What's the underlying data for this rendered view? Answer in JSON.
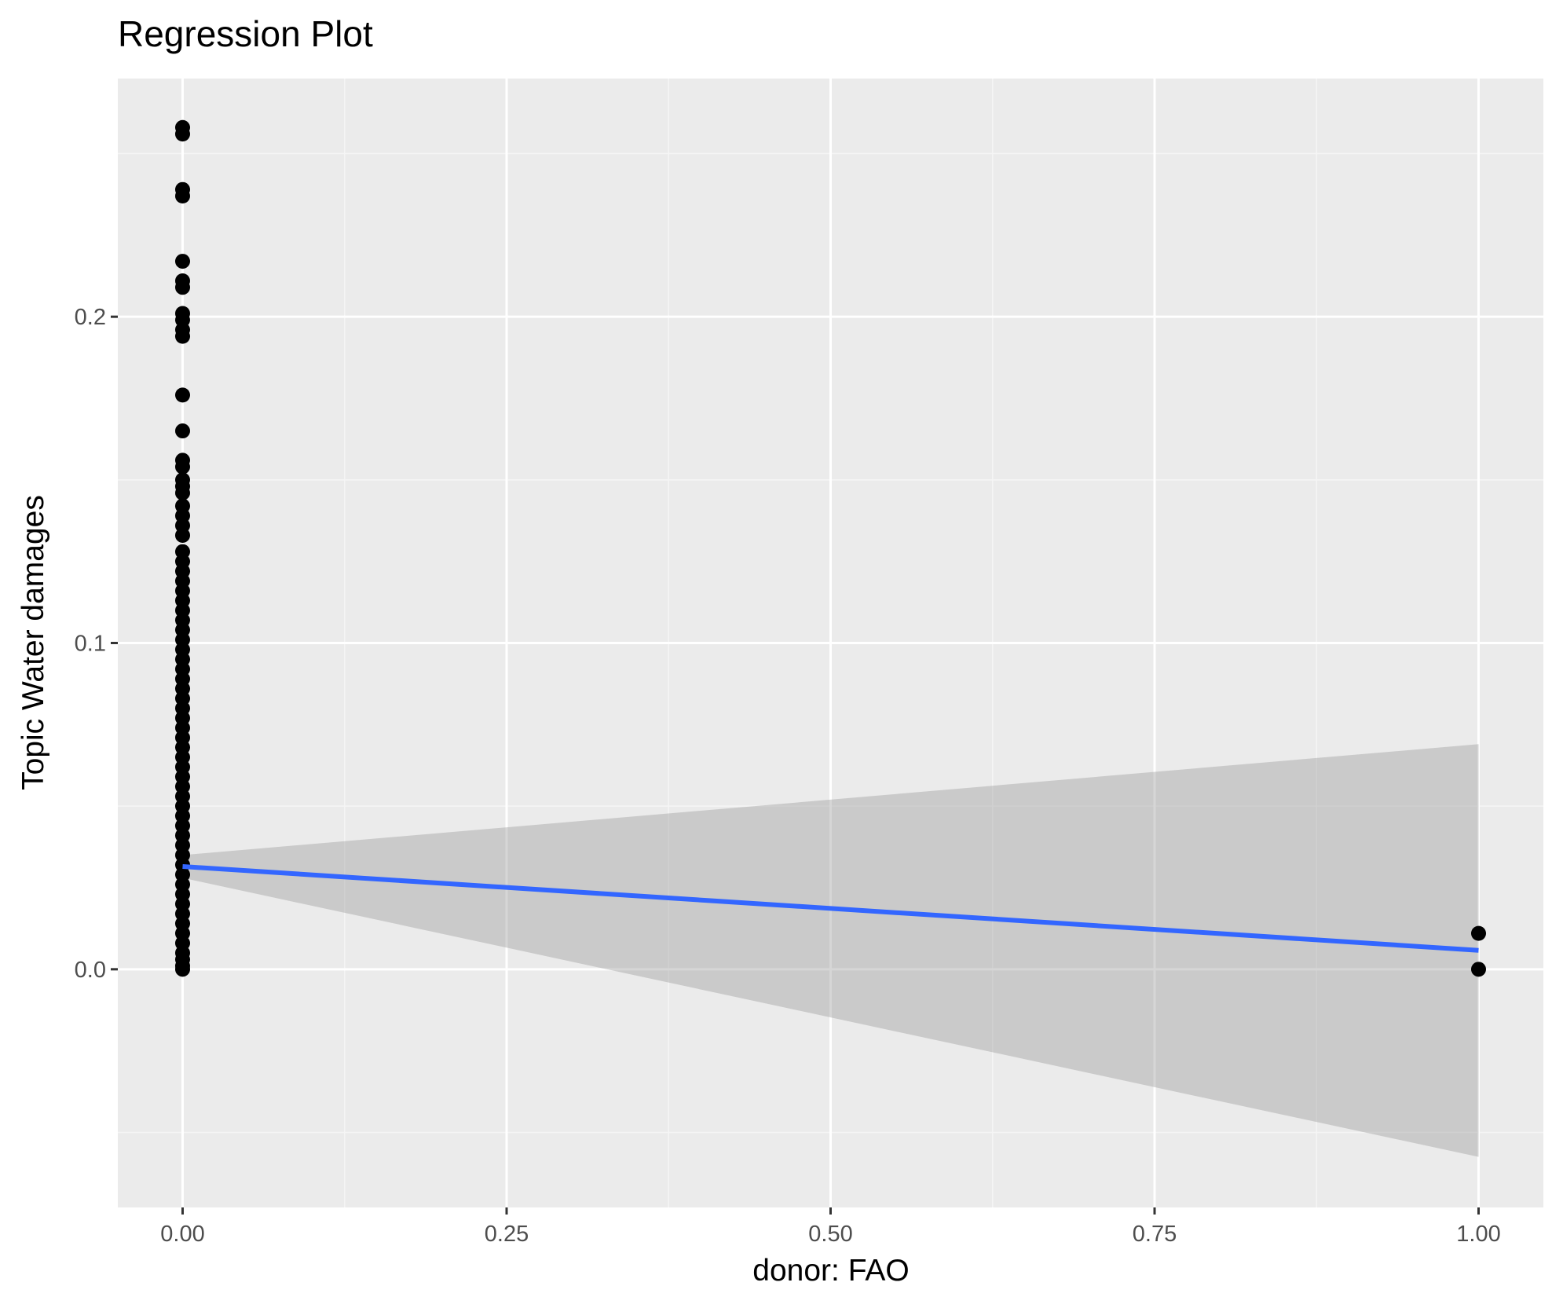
{
  "chart_data": {
    "type": "scatter",
    "title": "Regression Plot",
    "xlabel": "donor: FAO",
    "ylabel": "Topic Water damages",
    "xlim": [
      -0.05,
      1.05
    ],
    "ylim": [
      -0.073,
      0.273
    ],
    "x_ticks": [
      {
        "value": 0.0,
        "label": "0.00"
      },
      {
        "value": 0.25,
        "label": "0.25"
      },
      {
        "value": 0.5,
        "label": "0.50"
      },
      {
        "value": 0.75,
        "label": "0.75"
      },
      {
        "value": 1.0,
        "label": "1.00"
      }
    ],
    "y_ticks": [
      {
        "value": 0.0,
        "label": "0.0"
      },
      {
        "value": 0.1,
        "label": "0.1"
      },
      {
        "value": 0.2,
        "label": "0.2"
      }
    ],
    "x_minor": [
      0.125,
      0.375,
      0.625,
      0.875
    ],
    "y_minor": [
      -0.05,
      0.05,
      0.15,
      0.25
    ],
    "grid": true,
    "points": [
      {
        "x": 0,
        "y": 0.258
      },
      {
        "x": 0,
        "y": 0.256
      },
      {
        "x": 0,
        "y": 0.239
      },
      {
        "x": 0,
        "y": 0.237
      },
      {
        "x": 0,
        "y": 0.217
      },
      {
        "x": 0,
        "y": 0.211
      },
      {
        "x": 0,
        "y": 0.209
      },
      {
        "x": 0,
        "y": 0.201
      },
      {
        "x": 0,
        "y": 0.199
      },
      {
        "x": 0,
        "y": 0.196
      },
      {
        "x": 0,
        "y": 0.194
      },
      {
        "x": 0,
        "y": 0.176
      },
      {
        "x": 0,
        "y": 0.165
      },
      {
        "x": 0,
        "y": 0.156
      },
      {
        "x": 0,
        "y": 0.154
      },
      {
        "x": 0,
        "y": 0.15
      },
      {
        "x": 0,
        "y": 0.148
      },
      {
        "x": 0,
        "y": 0.146
      },
      {
        "x": 0,
        "y": 0.142
      },
      {
        "x": 0,
        "y": 0.139
      },
      {
        "x": 0,
        "y": 0.136
      },
      {
        "x": 0,
        "y": 0.133
      },
      {
        "x": 0,
        "y": 0.128
      },
      {
        "x": 0,
        "y": 0.125
      },
      {
        "x": 0,
        "y": 0.122
      },
      {
        "x": 0,
        "y": 0.119
      },
      {
        "x": 0,
        "y": 0.116
      },
      {
        "x": 0,
        "y": 0.113
      },
      {
        "x": 0,
        "y": 0.11
      },
      {
        "x": 0,
        "y": 0.107
      },
      {
        "x": 0,
        "y": 0.104
      },
      {
        "x": 0,
        "y": 0.101
      },
      {
        "x": 0,
        "y": 0.098
      },
      {
        "x": 0,
        "y": 0.095
      },
      {
        "x": 0,
        "y": 0.092
      },
      {
        "x": 0,
        "y": 0.089
      },
      {
        "x": 0,
        "y": 0.086
      },
      {
        "x": 0,
        "y": 0.083
      },
      {
        "x": 0,
        "y": 0.08
      },
      {
        "x": 0,
        "y": 0.077
      },
      {
        "x": 0,
        "y": 0.074
      },
      {
        "x": 0,
        "y": 0.071
      },
      {
        "x": 0,
        "y": 0.068
      },
      {
        "x": 0,
        "y": 0.065
      },
      {
        "x": 0,
        "y": 0.062
      },
      {
        "x": 0,
        "y": 0.059
      },
      {
        "x": 0,
        "y": 0.056
      },
      {
        "x": 0,
        "y": 0.053
      },
      {
        "x": 0,
        "y": 0.05
      },
      {
        "x": 0,
        "y": 0.047
      },
      {
        "x": 0,
        "y": 0.044
      },
      {
        "x": 0,
        "y": 0.041
      },
      {
        "x": 0,
        "y": 0.038
      },
      {
        "x": 0,
        "y": 0.035
      },
      {
        "x": 0,
        "y": 0.032
      },
      {
        "x": 0,
        "y": 0.029
      },
      {
        "x": 0,
        "y": 0.026
      },
      {
        "x": 0,
        "y": 0.023
      },
      {
        "x": 0,
        "y": 0.02
      },
      {
        "x": 0,
        "y": 0.017
      },
      {
        "x": 0,
        "y": 0.014
      },
      {
        "x": 0,
        "y": 0.011
      },
      {
        "x": 0,
        "y": 0.008
      },
      {
        "x": 0,
        "y": 0.005
      },
      {
        "x": 0,
        "y": 0.003
      },
      {
        "x": 0,
        "y": 0.001
      },
      {
        "x": 0,
        "y": 0.0
      },
      {
        "x": 1,
        "y": 0.011
      },
      {
        "x": 1,
        "y": 0.0
      }
    ],
    "regression": {
      "x": [
        0,
        1
      ],
      "fit": [
        0.0315,
        0.0058
      ],
      "ci_lower": [
        0.028,
        -0.0575
      ],
      "ci_upper": [
        0.035,
        0.069
      ]
    },
    "colors": {
      "panel": "#ebebeb",
      "grid_major": "#ffffff",
      "grid_minor": "#f5f5f5",
      "points": "#000000",
      "line": "#3366ff",
      "ribbon": "#999999"
    }
  }
}
